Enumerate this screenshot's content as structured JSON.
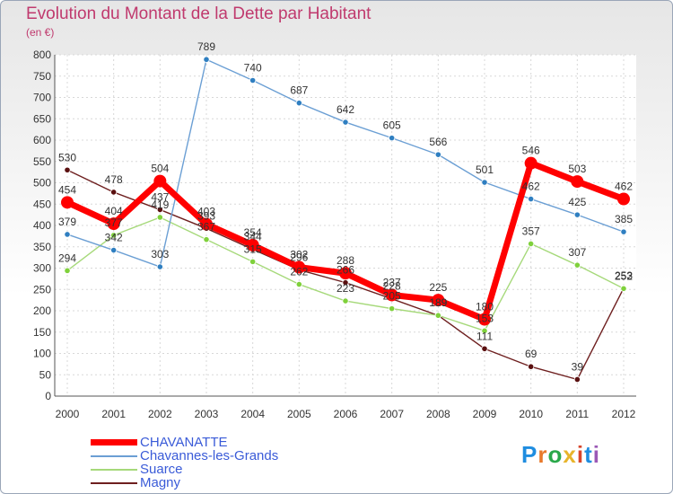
{
  "header": {
    "title": "Evolution du Montant de la Dette par Habitant",
    "unit": "(en €)"
  },
  "logo": {
    "text": "Proxiti",
    "colors": [
      "#1f8de0",
      "#e8792b",
      "#2aa84a",
      "#e8b42b",
      "#d8452b",
      "#1f8de0",
      "#9b59b6"
    ]
  },
  "chart_data": {
    "type": "line",
    "title": "Evolution du Montant de la Dette par Habitant",
    "ylabel": "(en €)",
    "xlabel": "",
    "ylim": [
      0,
      800
    ],
    "yticks": [
      0,
      50,
      100,
      150,
      200,
      250,
      300,
      350,
      400,
      450,
      500,
      550,
      600,
      650,
      700,
      750,
      800
    ],
    "categories": [
      "2000",
      "2001",
      "2002",
      "2003",
      "2004",
      "2005",
      "2006",
      "2007",
      "2008",
      "2009",
      "2010",
      "2011",
      "2012"
    ],
    "grid": true,
    "legend_position": "bottom-left",
    "series": [
      {
        "name": "Magny",
        "color": "#6e1f1f",
        "marker": "#5a1010",
        "values": [
          530,
          478,
          437,
          393,
          344,
          296,
          266,
          228,
          189,
          111,
          69,
          39,
          253
        ]
      },
      {
        "name": "Suarce",
        "color": "#a6d97a",
        "marker": "#7fd13b",
        "values": [
          294,
          377,
          419,
          367,
          315,
          262,
          223,
          205,
          189,
          153,
          357,
          307,
          252
        ]
      },
      {
        "name": "Chavannes-les-Grands",
        "color": "#6b9fd4",
        "marker": "#2f7fc1",
        "values": [
          379,
          342,
          303,
          789,
          740,
          687,
          642,
          605,
          566,
          501,
          462,
          425,
          385
        ]
      },
      {
        "name": "CHAVANATTE",
        "color": "#ff0000",
        "marker": "#ff0000",
        "bold": true,
        "values": [
          454,
          404,
          504,
          403,
          354,
          302,
          288,
          237,
          225,
          180,
          546,
          503,
          462
        ]
      }
    ],
    "legend_order": [
      "CHAVANATTE",
      "Chavannes-les-Grands",
      "Suarce",
      "Magny"
    ]
  }
}
